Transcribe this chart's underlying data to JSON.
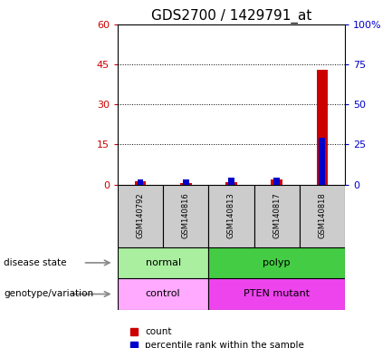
{
  "title": "GDS2700 / 1429791_at",
  "samples": [
    "GSM140792",
    "GSM140816",
    "GSM140813",
    "GSM140817",
    "GSM140818"
  ],
  "count_values": [
    1.2,
    0.5,
    1.0,
    2.0,
    43.0
  ],
  "percentile_values": [
    3.0,
    3.0,
    4.5,
    4.5,
    29.0
  ],
  "left_ylim": [
    0,
    60
  ],
  "right_ylim": [
    0,
    100
  ],
  "left_yticks": [
    0,
    15,
    30,
    45,
    60
  ],
  "right_yticks": [
    0,
    25,
    50,
    75,
    100
  ],
  "right_yticklabels": [
    "0",
    "25",
    "50",
    "75",
    "100%"
  ],
  "bar_width": 0.25,
  "count_color": "#CC0000",
  "percentile_color": "#0000CC",
  "left_label_color": "#CC0000",
  "right_label_color": "#0000CC",
  "bg_color": "#CCCCCC",
  "title_fontsize": 11,
  "tick_fontsize": 8,
  "sample_fontsize": 6,
  "annotation_fontsize": 8,
  "legend_fontsize": 7.5,
  "disease_groups": [
    {
      "label": "normal",
      "start": 0,
      "end": 1,
      "color": "#AAEEA0"
    },
    {
      "label": "polyp",
      "start": 2,
      "end": 4,
      "color": "#44CC44"
    }
  ],
  "geno_groups": [
    {
      "label": "control",
      "start": 0,
      "end": 1,
      "color": "#FFAAFF"
    },
    {
      "label": "PTEN mutant",
      "start": 2,
      "end": 4,
      "color": "#EE44EE"
    }
  ],
  "legend_items": [
    "count",
    "percentile rank within the sample"
  ]
}
